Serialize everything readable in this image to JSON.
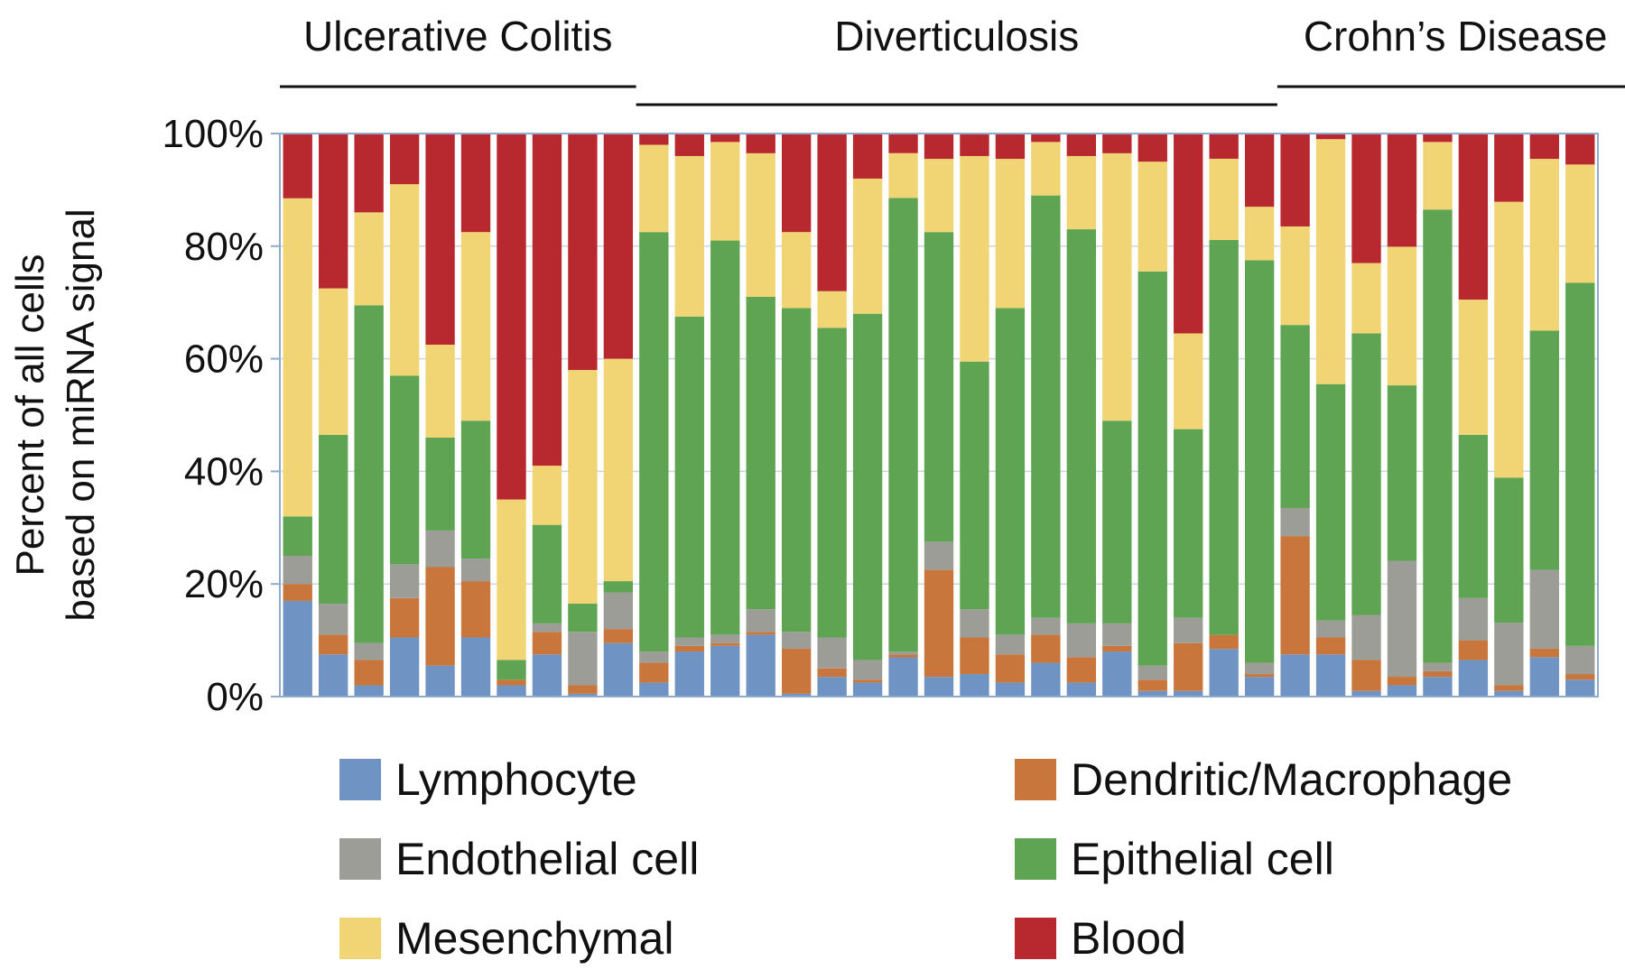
{
  "chart_data": {
    "type": "bar",
    "stacked": true,
    "stacking": "percent",
    "ylabel_lines": [
      "Percent of all cells",
      "based on miRNA signal"
    ],
    "ylim": [
      0,
      100
    ],
    "y_ticks": [
      "0%",
      "20%",
      "40%",
      "60%",
      "80%",
      "100%"
    ],
    "y_tick_values": [
      0,
      20,
      40,
      60,
      80,
      100
    ],
    "grid": true,
    "legend_position": "bottom",
    "groups": [
      {
        "label": "Ulcerative Colitis",
        "start": 0,
        "end": 9
      },
      {
        "label": "Diverticulosis",
        "start": 10,
        "end": 27
      },
      {
        "label": "Crohn’s Disease",
        "start": 28,
        "end": 37
      }
    ],
    "series": [
      {
        "name": "Lymphocyte",
        "color": "#6F93C2",
        "values": [
          17,
          7.5,
          2,
          10.5,
          5.5,
          10.5,
          2,
          7.5,
          0.5,
          9.5,
          2.5,
          8,
          9,
          11,
          0.5,
          3.5,
          2.5,
          7,
          3.5,
          4,
          2.5,
          6,
          2.5,
          8,
          1,
          1,
          8.5,
          3.5,
          7.5,
          7.5,
          1,
          2,
          3.5,
          6.5,
          1,
          7,
          3
        ]
      },
      {
        "name": "Dendritic/Macrophage",
        "color": "#C8763B",
        "values": [
          3,
          3.5,
          4.5,
          7,
          17.5,
          10,
          1,
          4,
          1.5,
          2.5,
          3.5,
          1,
          0.5,
          0.5,
          8,
          1.5,
          0.5,
          0.5,
          19,
          6.5,
          5,
          5,
          4.5,
          1,
          2,
          8.5,
          2.5,
          0.5,
          21,
          3,
          5.5,
          1.5,
          1,
          3.5,
          1,
          1.5,
          1
        ]
      },
      {
        "name": "Endothelial cell",
        "color": "#9D9D97",
        "values": [
          5,
          5.5,
          3,
          6,
          6.5,
          4,
          0,
          1.5,
          9.5,
          6.5,
          2,
          1.5,
          1.5,
          4,
          3,
          5.5,
          3.5,
          0.5,
          5,
          5,
          3.5,
          3,
          6,
          4,
          2.5,
          4.5,
          0,
          2,
          5,
          3,
          8,
          20.5,
          1.5,
          7.5,
          11,
          14,
          5
        ]
      },
      {
        "name": "Epithelial cell",
        "color": "#5FA452",
        "values": [
          7,
          30,
          60,
          33.5,
          16.5,
          24.5,
          3.5,
          17.5,
          5,
          2,
          74.5,
          57,
          70,
          55.5,
          57.5,
          55,
          61.5,
          81,
          55,
          44,
          58,
          75,
          70,
          36,
          70,
          33.5,
          70.5,
          71.5,
          32.5,
          42,
          50,
          31,
          80.5,
          29,
          25.5,
          42.5,
          64.5
        ]
      },
      {
        "name": "Mesenchymal",
        "color": "#F1D574",
        "values": [
          56.5,
          26,
          16.5,
          34,
          16.5,
          33.5,
          28.5,
          10.5,
          41.5,
          39.5,
          15.5,
          28.5,
          17.5,
          25.5,
          13.5,
          6.5,
          24,
          8,
          13,
          36.5,
          26.5,
          9.5,
          13,
          47.5,
          19.5,
          17,
          14.5,
          9.5,
          17.5,
          43.5,
          12.5,
          24.5,
          12,
          24,
          48.5,
          30.5,
          21
        ]
      },
      {
        "name": "Blood",
        "color": "#B8292F",
        "values": [
          11.5,
          27.5,
          14,
          9,
          37.5,
          17.5,
          65,
          59,
          42,
          40,
          2,
          4,
          1.5,
          3.5,
          17.5,
          28,
          8,
          3.5,
          4.5,
          4,
          4.5,
          1.5,
          4,
          3.5,
          5,
          35.5,
          4.5,
          13,
          16.5,
          1,
          23,
          20,
          1.5,
          29.5,
          12,
          4.5,
          5.5
        ]
      }
    ]
  }
}
